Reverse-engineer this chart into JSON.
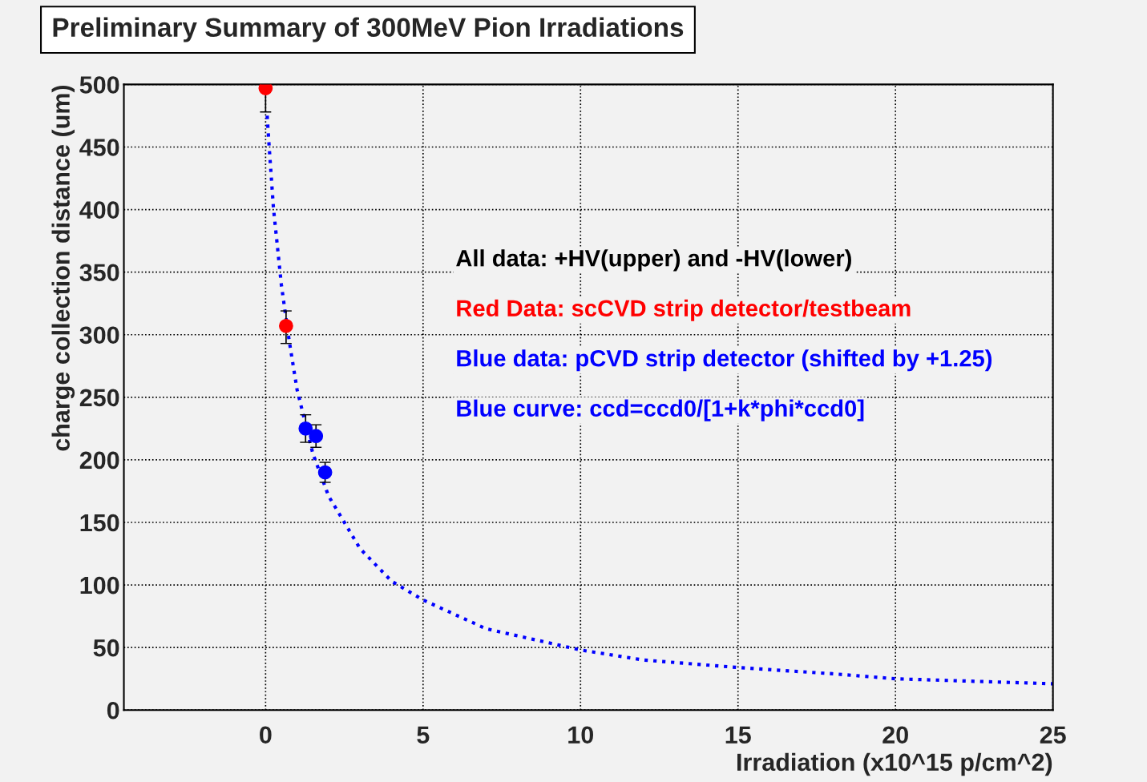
{
  "chart_data": {
    "type": "scatter",
    "title": "Preliminary Summary of 300MeV Pion Irradiations",
    "xlabel": "Irradiation (x10^15 p/cm^2)",
    "ylabel": "charge collection distance (um)",
    "xlim": [
      -4.5,
      25
    ],
    "xticks": [
      0,
      5,
      10,
      15,
      20,
      25
    ],
    "ylim": [
      0,
      500
    ],
    "yticks": [
      0,
      50,
      100,
      150,
      200,
      250,
      300,
      350,
      400,
      450,
      500
    ],
    "grid": true,
    "marker": "circle",
    "annotations": [
      "All data: +HV(upper) and -HV(lower)",
      "Red Data: scCVD strip detector/testbeam",
      "Blue data: pCVD strip detector (shifted by +1.25)",
      "Blue curve: ccd=ccd0/[1+k*phi*ccd0]"
    ],
    "series": [
      {
        "color": "#ff0000",
        "x": [
          0,
          0.65
        ],
        "values": [
          497,
          307
        ],
        "errors": [
          [
            478,
            500
          ],
          [
            293,
            319
          ]
        ]
      },
      {
        "color": "#0000ff",
        "x": [
          1.27,
          1.6,
          1.89
        ],
        "values": [
          225,
          219,
          190
        ],
        "errors": [
          [
            214,
            236
          ],
          [
            210,
            228
          ],
          [
            182,
            198
          ]
        ]
      },
      {
        "type": "line",
        "color": "#0000ff",
        "marker": "none",
        "line_style": "dotted",
        "x": [
          0.05,
          0.1,
          0.25,
          0.5,
          0.75,
          1,
          1.5,
          2,
          3,
          4,
          5,
          7,
          10,
          12,
          15,
          18,
          20,
          25
        ],
        "values": [
          475,
          455,
          401,
          340,
          295,
          256,
          205,
          171,
          129,
          103,
          88,
          65,
          48,
          40,
          34,
          29,
          25,
          21
        ]
      }
    ]
  }
}
